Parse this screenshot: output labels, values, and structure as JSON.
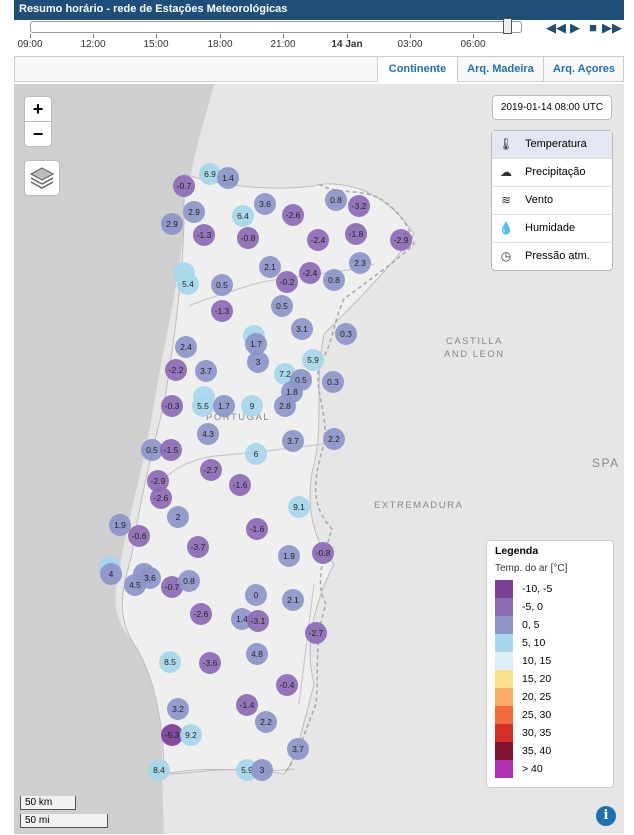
{
  "header": {
    "title": "Resumo horário - rede de Estações Meteorológicas"
  },
  "timeline": {
    "ticks": [
      {
        "label": "09:00",
        "bold": false
      },
      {
        "label": "12:00",
        "bold": false
      },
      {
        "label": "15:00",
        "bold": false
      },
      {
        "label": "18:00",
        "bold": false
      },
      {
        "label": "21:00",
        "bold": false
      },
      {
        "label": "14 Jan",
        "bold": true
      },
      {
        "label": "03:00",
        "bold": false
      },
      {
        "label": "06:00",
        "bold": false
      }
    ],
    "current_position": 0.98,
    "controls": [
      "skip-back-icon",
      "play-icon",
      "stop-icon",
      "skip-forward-icon"
    ]
  },
  "tabs": [
    {
      "label": "Continente",
      "active": true
    },
    {
      "label": "Arq. Madeira",
      "active": false
    },
    {
      "label": "Arq. Açores",
      "active": false
    }
  ],
  "map": {
    "zoom_in": "+",
    "zoom_out": "−",
    "datetime": "2019-01-14 08:00 UTC",
    "place_labels": [
      "PORTUGAL",
      "CASTILLA",
      "AND LEON",
      "EXTREMADURA",
      "SPA"
    ],
    "variables": [
      {
        "label": "Temperatura",
        "icon": "thermometer-icon",
        "active": true
      },
      {
        "label": "Precipitação",
        "icon": "cloud-rain-icon",
        "active": false
      },
      {
        "label": "Vento",
        "icon": "wind-icon",
        "active": false
      },
      {
        "label": "Humidade",
        "icon": "droplet-icon",
        "active": false
      },
      {
        "label": "Pressão atm.",
        "icon": "gauge-icon",
        "active": false
      }
    ],
    "scale": {
      "km": "50 km",
      "mi": "50 mi"
    },
    "info": "i"
  },
  "legend": {
    "title": "Legenda",
    "subtitle": "Temp. do ar [°C]",
    "classes": [
      {
        "label": "-10, -5",
        "color": "#7b3f98"
      },
      {
        "label": "-5, 0",
        "color": "#8e6bb5"
      },
      {
        "label": "0, 5",
        "color": "#8d95c9"
      },
      {
        "label": "5, 10",
        "color": "#a6d7ea"
      },
      {
        "label": "10, 15",
        "color": "#ddeef6"
      },
      {
        "label": "15, 20",
        "color": "#fde08a"
      },
      {
        "label": "20, 25",
        "color": "#f9ac62"
      },
      {
        "label": "25, 30",
        "color": "#f26a3a"
      },
      {
        "label": "30, 35",
        "color": "#d62f27"
      },
      {
        "label": "35, 40",
        "color": "#7f1530"
      },
      {
        "label": "> 40",
        "color": "#b230b2"
      }
    ]
  },
  "stations": [
    {
      "v": "6.9"
    },
    {
      "v": "1.4"
    },
    {
      "v": "-0.7"
    },
    {
      "v": "3.6"
    },
    {
      "v": "0.8"
    },
    {
      "v": "-3.2"
    },
    {
      "v": "2.9"
    },
    {
      "v": "6.4"
    },
    {
      "v": "-2.6"
    },
    {
      "v": "2.9"
    },
    {
      "v": "-1.3"
    },
    {
      "v": "-0.8"
    },
    {
      "v": "-2.4"
    },
    {
      "v": "-1.8"
    },
    {
      "v": "-2.9"
    },
    {
      "v": "2.1"
    },
    {
      "v": "2.3"
    },
    {
      "v": "-2.4"
    },
    {
      "v": ""
    },
    {
      "v": "-0.2"
    },
    {
      "v": "5.4"
    },
    {
      "v": "0.5"
    },
    {
      "v": "0.8"
    },
    {
      "v": "0.5"
    },
    {
      "v": "-1.3"
    },
    {
      "v": "3.1"
    },
    {
      "v": "0.3"
    },
    {
      "v": ""
    },
    {
      "v": "2.4"
    },
    {
      "v": "1.7"
    },
    {
      "v": "3"
    },
    {
      "v": "5.9"
    },
    {
      "v": "-2.2"
    },
    {
      "v": "3.7"
    },
    {
      "v": "7.2"
    },
    {
      "v": "0.5"
    },
    {
      "v": "0.3"
    },
    {
      "v": "1.8"
    },
    {
      "v": ""
    },
    {
      "v": "-0.3"
    },
    {
      "v": "5.5"
    },
    {
      "v": "1.7"
    },
    {
      "v": "9"
    },
    {
      "v": "2.8"
    },
    {
      "v": "4.3"
    },
    {
      "v": "3.7"
    },
    {
      "v": "2.2"
    },
    {
      "v": "0.5"
    },
    {
      "v": "-1.5"
    },
    {
      "v": "6"
    },
    {
      "v": "-2.7"
    },
    {
      "v": "-2.9"
    },
    {
      "v": "-1.6"
    },
    {
      "v": "-2.6"
    },
    {
      "v": "9.1"
    },
    {
      "v": "2"
    },
    {
      "v": "1.9"
    },
    {
      "v": "-0.6"
    },
    {
      "v": "-1.6"
    },
    {
      "v": "-3.7"
    },
    {
      "v": "1.9"
    },
    {
      "v": "-0.8"
    },
    {
      "v": ""
    },
    {
      "v": "4"
    },
    {
      "v": "3"
    },
    {
      "v": "3.6"
    },
    {
      "v": "4.5"
    },
    {
      "v": "-0.7"
    },
    {
      "v": "0.8"
    },
    {
      "v": "0"
    },
    {
      "v": "-2.6"
    },
    {
      "v": "1.4"
    },
    {
      "v": "-3.1"
    },
    {
      "v": "2.1"
    },
    {
      "v": "-2.7"
    },
    {
      "v": "8.5"
    },
    {
      "v": "-3.6"
    },
    {
      "v": "4.8"
    },
    {
      "v": "-0.4"
    },
    {
      "v": "3.2"
    },
    {
      "v": "-1.4"
    },
    {
      "v": "2.2"
    },
    {
      "v": "-5.3"
    },
    {
      "v": "9.2"
    },
    {
      "v": "3.7"
    },
    {
      "v": "8.4"
    },
    {
      "v": "5.9"
    },
    {
      "v": "3"
    }
  ]
}
